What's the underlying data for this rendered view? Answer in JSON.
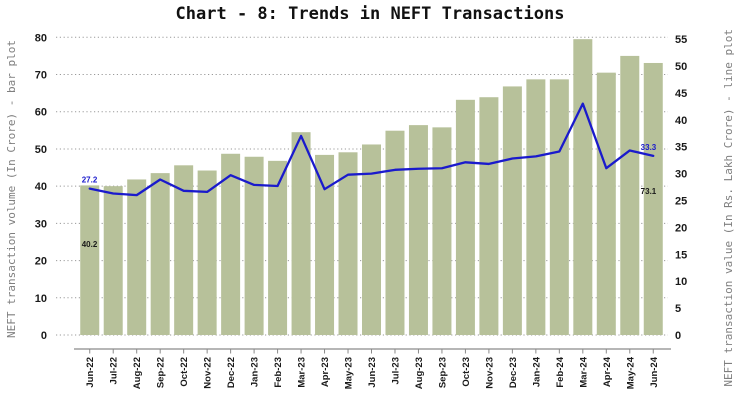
{
  "title": "Chart - 8: Trends in NEFT Transactions",
  "chart_data": {
    "type": "bar",
    "subtype": "bar+line dual axis",
    "categories": [
      "Jun-22",
      "Jul-22",
      "Aug-22",
      "Sep-22",
      "Oct-22",
      "Nov-22",
      "Dec-22",
      "Jan-23",
      "Feb-23",
      "Mar-23",
      "Apr-23",
      "May-23",
      "Jun-23",
      "Jul-23",
      "Aug-23",
      "Sep-23",
      "Oct-23",
      "Nov-23",
      "Dec-23",
      "Jan-24",
      "Feb-24",
      "Mar-24",
      "Apr-24",
      "May-24",
      "Jun-24"
    ],
    "series": [
      {
        "name": "NEFT transaction volume (In Crore) - bar plot",
        "type": "bar",
        "axis": "left",
        "values": [
          40.2,
          40.0,
          41.8,
          43.5,
          45.6,
          44.2,
          48.7,
          47.9,
          46.8,
          54.5,
          48.4,
          49.1,
          51.2,
          54.9,
          56.4,
          55.8,
          63.2,
          63.9,
          66.8,
          68.7,
          68.7,
          79.5,
          70.5,
          75.0,
          73.1
        ]
      },
      {
        "name": "NEFT transaction value (In Rs. Lakh Crore) - line plot",
        "type": "line",
        "axis": "right",
        "values": [
          27.2,
          26.3,
          26.0,
          28.9,
          26.8,
          26.6,
          29.7,
          27.9,
          27.7,
          37.0,
          27.1,
          29.8,
          30.0,
          30.7,
          30.9,
          31.0,
          32.1,
          31.8,
          32.8,
          33.2,
          34.1,
          43.0,
          31.0,
          34.3,
          33.3
        ]
      }
    ],
    "left_axis": {
      "label": "NEFT transaction volume (In Crore) - bar plot",
      "min": 0,
      "max": 80,
      "ticks": [
        0,
        10,
        20,
        30,
        40,
        50,
        60,
        70,
        80
      ]
    },
    "right_axis": {
      "label": "NEFT transaction value (In Rs. Lakh Crore) - line plot",
      "min": 0,
      "max": 55,
      "ticks": [
        0,
        5,
        10,
        15,
        20,
        25,
        30,
        35,
        40,
        45,
        50,
        55
      ]
    },
    "annotations": [
      {
        "text": "27.2",
        "target": "line-first",
        "color": "#1a1acc"
      },
      {
        "text": "40.2",
        "target": "bar-first",
        "color": "#1a1a1a"
      },
      {
        "text": "33.3",
        "target": "line-last",
        "color": "#1a1acc"
      },
      {
        "text": "73.1",
        "target": "bar-last",
        "color": "#1a1a1a"
      }
    ],
    "colors": {
      "bar": "#b7c19a",
      "line": "#1a1acc",
      "grid": "#9a9a9a",
      "axis_title_text": "#7f7f7f",
      "tick_text": "#1a1a1a",
      "spine": "#8a8a8a"
    },
    "grid": true,
    "legend": "none",
    "title": "Chart - 8: Trends in NEFT Transactions"
  }
}
